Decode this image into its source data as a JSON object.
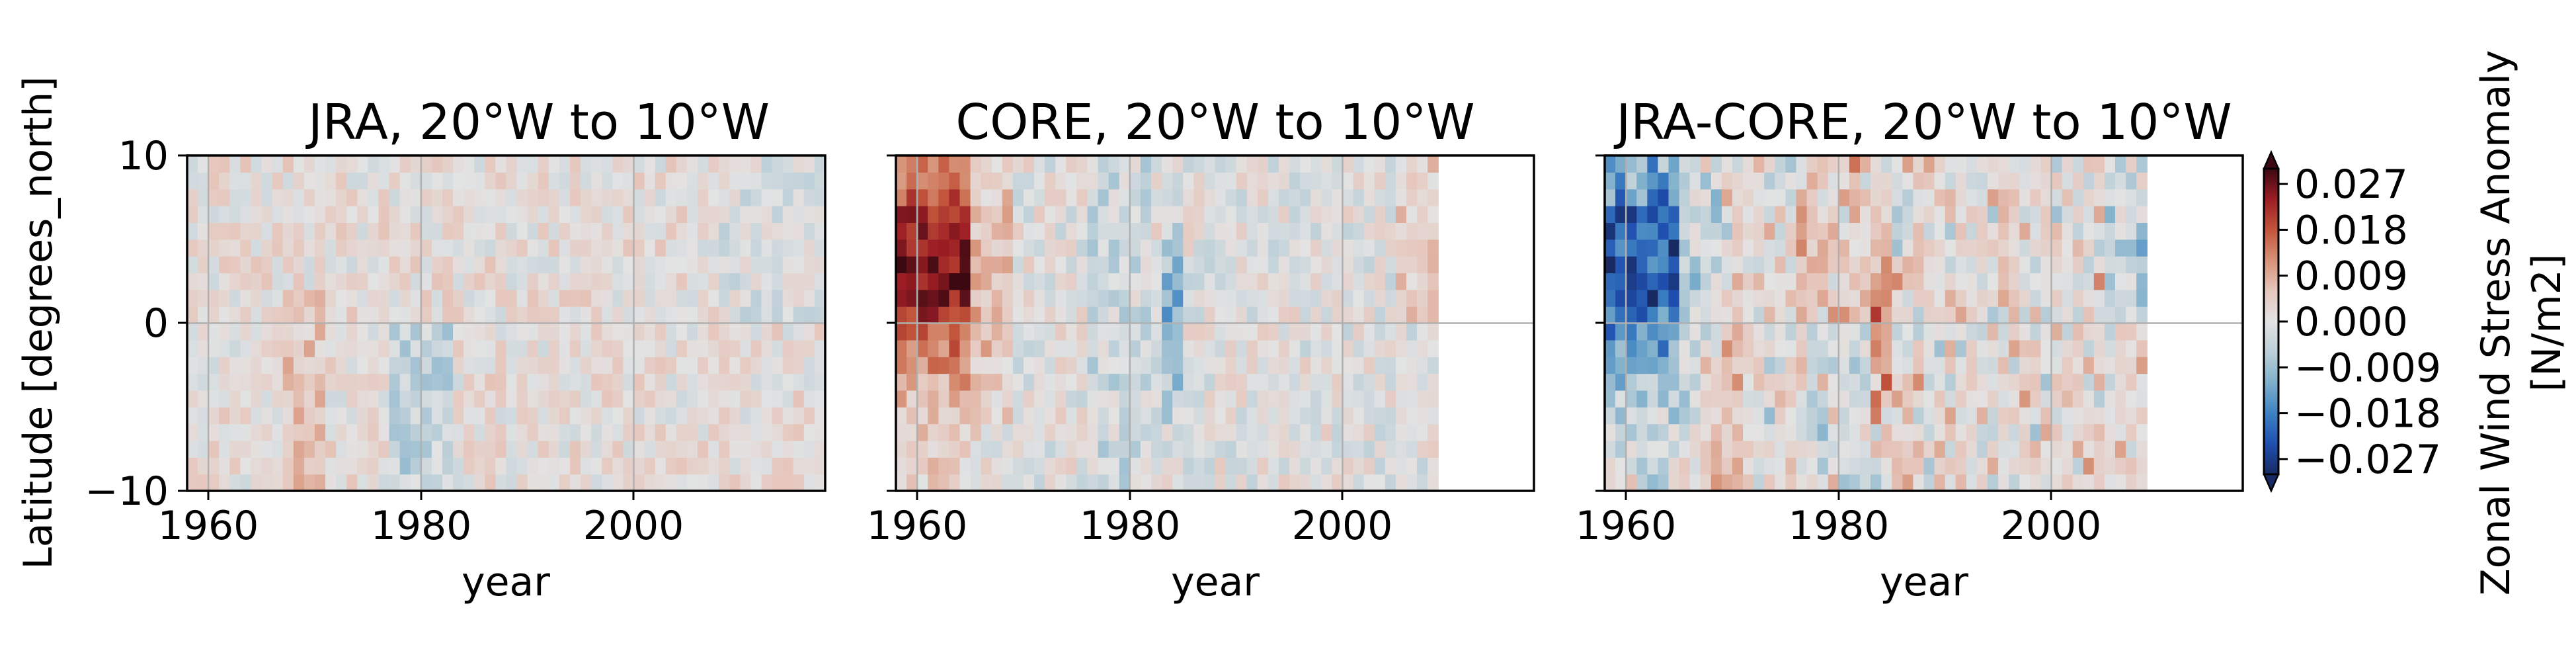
{
  "chart_data": [
    {
      "type": "heatmap",
      "panel": "jra",
      "title": "JRA, 20°W to 10°W",
      "xlabel": "year",
      "ylabel": "Latitude [degrees_north]",
      "x_range": [
        1958,
        2018
      ],
      "ylim": [
        -10,
        10
      ],
      "xticks": [
        "1960",
        "1980",
        "2000"
      ],
      "yticks": [
        "10",
        "0",
        "−10"
      ],
      "grid": true,
      "data_years": [
        1958,
        2018
      ]
    },
    {
      "type": "heatmap",
      "panel": "core",
      "title": "CORE, 20°W to 10°W",
      "xlabel": "year",
      "x_range": [
        1958,
        2018
      ],
      "ylim": [
        -10,
        10
      ],
      "xticks": [
        "1960",
        "1980",
        "2000"
      ],
      "grid": true,
      "data_years": [
        1958,
        2009
      ]
    },
    {
      "type": "heatmap",
      "panel": "diff",
      "title": "JRA-CORE, 20°W to 10°W",
      "xlabel": "year",
      "x_range": [
        1958,
        2018
      ],
      "ylim": [
        -10,
        10
      ],
      "xticks": [
        "1960",
        "1980",
        "2000"
      ],
      "grid": true,
      "data_years": [
        1958,
        2009
      ]
    }
  ],
  "colorbar": {
    "label_line1": "Zonal Wind Stress Anomaly",
    "label_line2": "[N/m2]",
    "range": [
      -0.03,
      0.03
    ],
    "ticks": [
      "0.027",
      "0.018",
      "0.009",
      "0.000",
      "−0.009",
      "−0.018",
      "−0.027"
    ],
    "tick_values": [
      0.027,
      0.018,
      0.009,
      0,
      -0.009,
      -0.018,
      -0.027
    ],
    "colormap": [
      "#172a63",
      "#1f4fb0",
      "#3e82c2",
      "#7fb0cc",
      "#bccfd8",
      "#e3e3e3",
      "#e6c7bd",
      "#d79277",
      "#c2553b",
      "#9c1d24",
      "#3c0913"
    ]
  }
}
